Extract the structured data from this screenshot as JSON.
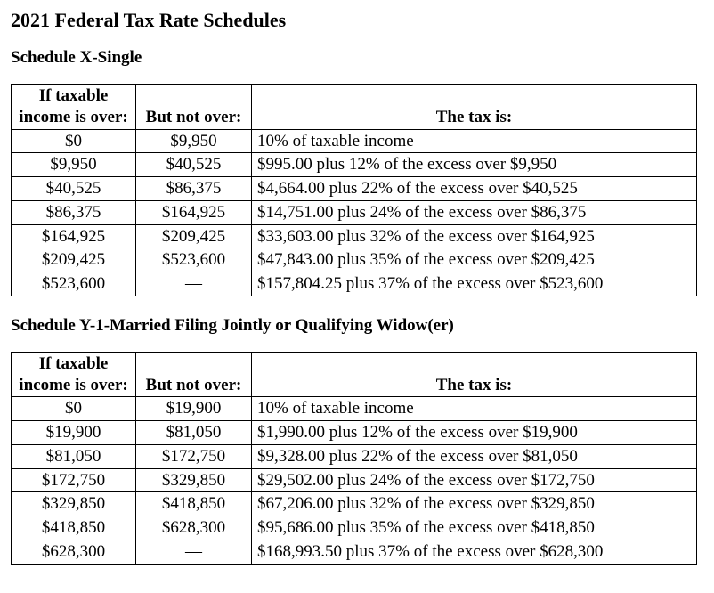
{
  "page_title": "2021 Federal Tax Rate Schedules",
  "schedules": [
    {
      "heading": "Schedule X-Single",
      "columns": [
        "If taxable income is over:",
        "But not over:",
        "The tax is:"
      ],
      "rows": [
        {
          "over": "$0",
          "not_over": "$9,950",
          "tax": "10% of taxable income"
        },
        {
          "over": "$9,950",
          "not_over": "$40,525",
          "tax": "$995.00 plus 12% of the excess over $9,950"
        },
        {
          "over": "$40,525",
          "not_over": "$86,375",
          "tax": "$4,664.00 plus 22% of the excess over $40,525"
        },
        {
          "over": "$86,375",
          "not_over": "$164,925",
          "tax": "$14,751.00 plus 24% of the excess over $86,375"
        },
        {
          "over": "$164,925",
          "not_over": "$209,425",
          "tax": "$33,603.00 plus 32% of the excess over $164,925"
        },
        {
          "over": "$209,425",
          "not_over": "$523,600",
          "tax": "$47,843.00 plus 35% of the excess over $209,425"
        },
        {
          "over": "$523,600",
          "not_over": "—",
          "tax": "$157,804.25 plus 37% of the excess over $523,600"
        }
      ]
    },
    {
      "heading": "Schedule Y-1-Married Filing Jointly or Qualifying Widow(er)",
      "columns": [
        "If taxable income is over:",
        "But not over:",
        "The tax is:"
      ],
      "rows": [
        {
          "over": "$0",
          "not_over": "$19,900",
          "tax": "10% of taxable income"
        },
        {
          "over": "$19,900",
          "not_over": "$81,050",
          "tax": "$1,990.00 plus 12% of the excess over $19,900"
        },
        {
          "over": "$81,050",
          "not_over": "$172,750",
          "tax": "$9,328.00 plus 22% of the excess over $81,050"
        },
        {
          "over": "$172,750",
          "not_over": "$329,850",
          "tax": "$29,502.00 plus 24% of the excess over $172,750"
        },
        {
          "over": "$329,850",
          "not_over": "$418,850",
          "tax": "$67,206.00 plus 32% of the excess over $329,850"
        },
        {
          "over": "$418,850",
          "not_over": "$628,300",
          "tax": "$95,686.00 plus 35% of the excess over $418,850"
        },
        {
          "over": "$628,300",
          "not_over": "—",
          "tax": "$168,993.50 plus 37% of the excess over $628,300"
        }
      ]
    }
  ],
  "colors": {
    "text": "#000000",
    "background": "#ffffff",
    "border": "#000000"
  }
}
